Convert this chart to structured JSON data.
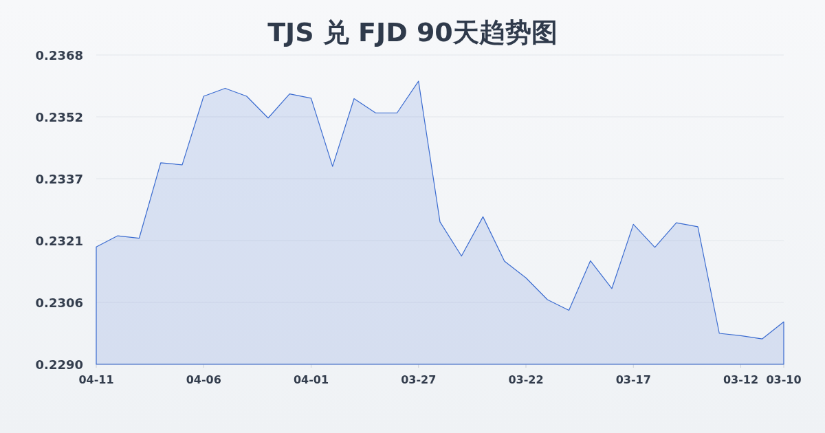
{
  "chart_data": {
    "type": "area",
    "title": "TJS 兑 FJD 90天趋势图",
    "categories": [
      "04-11",
      null,
      null,
      null,
      null,
      "04-06",
      null,
      null,
      null,
      null,
      "04-01",
      null,
      null,
      null,
      null,
      "03-27",
      null,
      null,
      null,
      null,
      "03-22",
      null,
      null,
      null,
      null,
      "03-17",
      null,
      null,
      null,
      null,
      "03-12",
      null,
      "03-10"
    ],
    "series": [
      {
        "color": "#3a6bd0",
        "values": [
          0.23196,
          0.23224,
          0.23218,
          0.23408,
          0.23403,
          0.23576,
          0.23596,
          0.23576,
          0.23521,
          0.23582,
          0.23571,
          0.23399,
          0.2357,
          0.23534,
          0.23534,
          0.23614,
          0.23259,
          0.23173,
          0.23272,
          0.2316,
          0.23118,
          0.23063,
          0.23036,
          0.23161,
          0.23091,
          0.23253,
          0.23195,
          0.23257,
          0.23247,
          0.22978,
          0.22972,
          0.22964,
          0.23007
        ]
      }
    ],
    "ylim": [
      0.229,
      0.2368
    ],
    "yticks": [
      {
        "value": 0.229,
        "label": "0.2290"
      },
      {
        "value": 0.23056,
        "label": "0.2306"
      },
      {
        "value": 0.23212,
        "label": "0.2321"
      },
      {
        "value": 0.23368,
        "label": "0.2337"
      },
      {
        "value": 0.23524,
        "label": "0.2352"
      },
      {
        "value": 0.2368,
        "label": "0.2368"
      }
    ],
    "grid": "y"
  }
}
